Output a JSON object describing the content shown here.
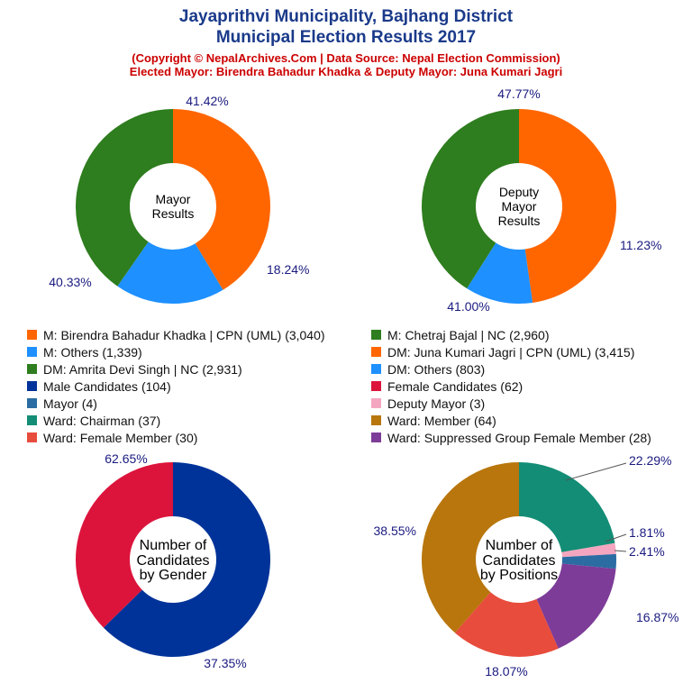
{
  "header": {
    "title_line1": "Jayaprithvi Municipality, Bajhang District",
    "title_line2": "Municipal Election Results 2017",
    "copyright": "(Copyright © NepalArchives.Com | Data Source: Nepal Election Commission)",
    "elected": "Elected Mayor: Birendra Bahadur Khadka & Deputy Mayor: Juna Kumari Jagri"
  },
  "legend": [
    {
      "label": "M: Birendra Bahadur Khadka | CPN (UML) (3,040)",
      "color": "#ff6600"
    },
    {
      "label": "M: Chetraj Bajal | NC (2,960)",
      "color": "#2e7d1e"
    },
    {
      "label": "M: Others (1,339)",
      "color": "#1e90ff"
    },
    {
      "label": "DM: Juna Kumari Jagri | CPN (UML) (3,415)",
      "color": "#ff6600"
    },
    {
      "label": "DM: Amrita Devi Singh | NC (2,931)",
      "color": "#2e7d1e"
    },
    {
      "label": "DM: Others (803)",
      "color": "#1e90ff"
    },
    {
      "label": "Male Candidates (104)",
      "color": "#003399"
    },
    {
      "label": "Female Candidates (62)",
      "color": "#dc143c"
    },
    {
      "label": "Mayor (4)",
      "color": "#2b6ca3"
    },
    {
      "label": "Deputy Mayor (3)",
      "color": "#f4a6c0"
    },
    {
      "label": "Ward: Chairman (37)",
      "color": "#138d75"
    },
    {
      "label": "Ward: Member (64)",
      "color": "#b8760c"
    },
    {
      "label": "Ward: Female Member (30)",
      "color": "#e74c3c"
    },
    {
      "label": "Ward: Suppressed Group Female Member (28)",
      "color": "#7d3c98"
    }
  ],
  "chart_data": [
    {
      "type": "pie",
      "center_label": [
        "Mayor",
        "Results"
      ],
      "slices": [
        {
          "name": "M: Birendra Bahadur Khadka | CPN (UML)",
          "value": 3040,
          "pct_label": "41.42%",
          "color": "#ff6600"
        },
        {
          "name": "M: Others",
          "value": 1339,
          "pct_label": "18.24%",
          "color": "#1e90ff"
        },
        {
          "name": "M: Chetraj Bajal | NC",
          "value": 2960,
          "pct_label": "40.33%",
          "color": "#2e7d1e"
        }
      ]
    },
    {
      "type": "pie",
      "center_label": [
        "Deputy",
        "Mayor",
        "Results"
      ],
      "slices": [
        {
          "name": "DM: Juna Kumari Jagri | CPN (UML)",
          "value": 3415,
          "pct_label": "47.77%",
          "color": "#ff6600"
        },
        {
          "name": "DM: Others",
          "value": 803,
          "pct_label": "11.23%",
          "color": "#1e90ff"
        },
        {
          "name": "DM: Amrita Devi Singh | NC",
          "value": 2931,
          "pct_label": "41.00%",
          "color": "#2e7d1e"
        }
      ]
    },
    {
      "type": "pie",
      "center_label": [
        "Number of",
        "Candidates",
        "by Gender"
      ],
      "slices": [
        {
          "name": "Male Candidates",
          "value": 104,
          "pct_label": "62.65%",
          "color": "#003399"
        },
        {
          "name": "Female Candidates",
          "value": 62,
          "pct_label": "37.35%",
          "color": "#dc143c"
        }
      ]
    },
    {
      "type": "pie",
      "center_label": [
        "Number of",
        "Candidates",
        "by Positions"
      ],
      "slices": [
        {
          "name": "Ward: Chairman",
          "value": 37,
          "pct_label": "22.29%",
          "color": "#138d75"
        },
        {
          "name": "Deputy Mayor",
          "value": 3,
          "pct_label": "1.81%",
          "color": "#f4a6c0"
        },
        {
          "name": "Mayor",
          "value": 4,
          "pct_label": "2.41%",
          "color": "#2b6ca3"
        },
        {
          "name": "Ward: Suppressed Group Female Member",
          "value": 28,
          "pct_label": "16.87%",
          "color": "#7d3c98"
        },
        {
          "name": "Ward: Female Member",
          "value": 30,
          "pct_label": "18.07%",
          "color": "#e74c3c"
        },
        {
          "name": "Ward: Member",
          "value": 64,
          "pct_label": "38.55%",
          "color": "#b8760c"
        }
      ]
    }
  ]
}
